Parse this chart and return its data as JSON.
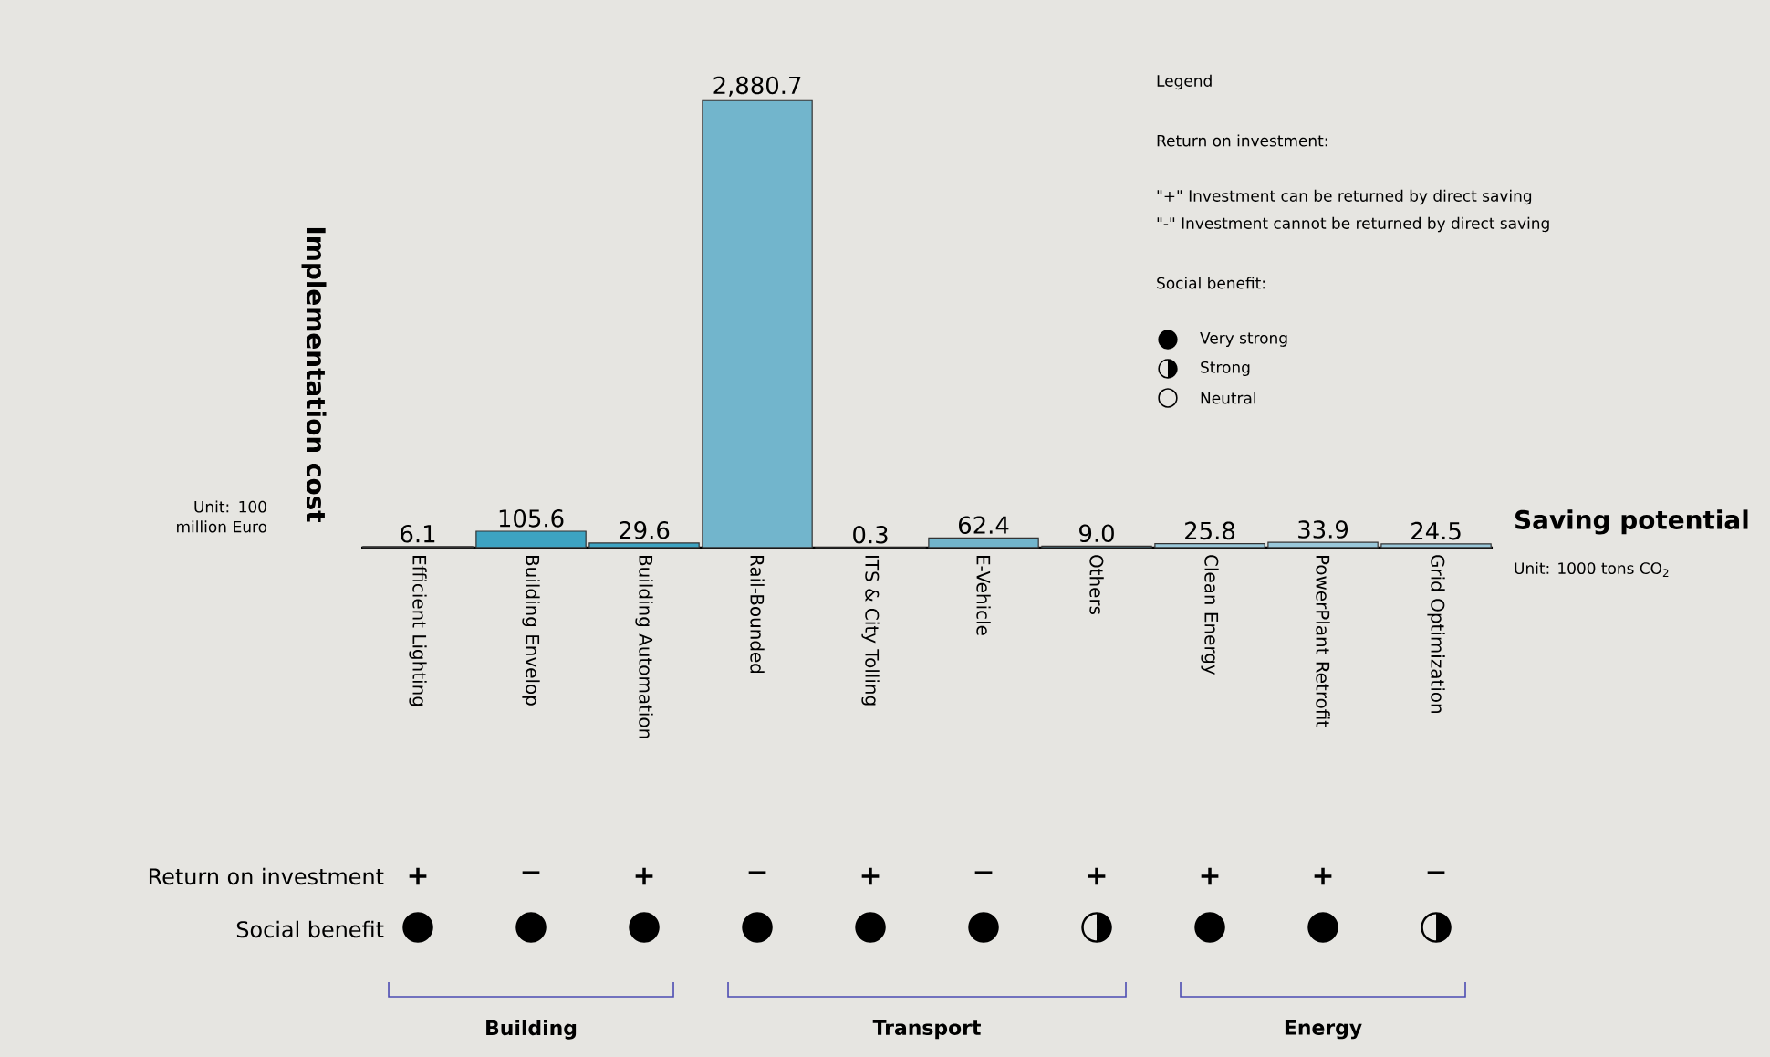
{
  "chart_data": {
    "type": "bar",
    "xlabel": "Saving potential",
    "ylabel": "Implementation cost",
    "categories": [
      "Efficient Lighting",
      "Building Envelop",
      "Building Automation",
      "Rail-Bounded",
      "ITS & City Tolling",
      "E-Vehicle",
      "Others",
      "Clean Energy",
      "PowerPlant Retrofit",
      "Grid Optimization"
    ],
    "values": [
      6.1,
      105.6,
      29.6,
      2880.7,
      0.3,
      62.4,
      9.0,
      25.8,
      33.9,
      24.5
    ],
    "value_labels": [
      "6.1",
      "105.6",
      "29.6",
      "2,880.7",
      "0.3",
      "62.4",
      "9.0",
      "25.8",
      "33.9",
      "24.5"
    ],
    "colors": [
      "#3da3c2",
      "#3da3c2",
      "#3da3c2",
      "#72b5cc",
      "#3da3c2",
      "#72b5cc",
      "#4aa6c4",
      "#9ac8da",
      "#9ac8da",
      "#9ac8da"
    ],
    "annotations": [
      "Legend",
      "Return on investment:",
      "\"+\" Investment can be returned by direct saving",
      "\"-\" Investment cannot be returned by direct saving",
      "Social benefit:",
      "●",
      "Very strong",
      "◑",
      "Strong",
      "○",
      "Neutral",
      "Unit: 100 million Euro",
      "Unit: 1000 tons CO$_{2}$",
      "Return on investment",
      "Social benefit",
      "Building",
      "Transport",
      "Energy",
      "+",
      "−",
      "+",
      "−",
      "+",
      "−",
      "+",
      "+",
      "+",
      "−",
      "●",
      "●",
      "●",
      "●",
      "●",
      "●",
      "◑",
      "●",
      "●",
      "◑"
    ]
  }
}
